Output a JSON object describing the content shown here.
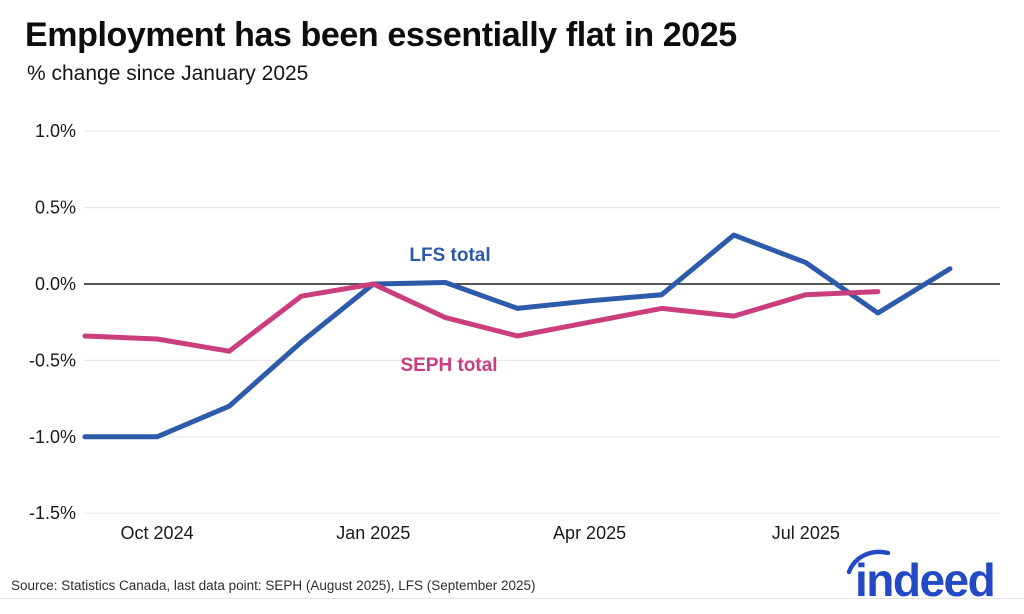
{
  "header": {
    "title": "Employment has been essentially flat in 2025",
    "subtitle": "% change since January 2025"
  },
  "chart_data": {
    "type": "line",
    "title": "Employment has been essentially flat in 2025",
    "subtitle": "% change since January 2025",
    "xlabel": "",
    "ylabel": "% change since January 2025",
    "x": [
      "Sep 2024",
      "Oct 2024",
      "Nov 2024",
      "Dec 2024",
      "Jan 2025",
      "Feb 2025",
      "Mar 2025",
      "Apr 2025",
      "May 2025",
      "Jun 2025",
      "Jul 2025",
      "Aug 2025",
      "Sep 2025"
    ],
    "x_tick_labels": [
      "Oct 2024",
      "Jan 2025",
      "Apr 2025",
      "Jul 2025"
    ],
    "y_ticks": [
      1.0,
      0.5,
      0.0,
      -0.5,
      -1.0,
      -1.5
    ],
    "y_tick_labels": [
      "1.0%",
      "0.5%",
      "0.0%",
      "-0.5%",
      "-1.0%",
      "-1.5%"
    ],
    "ylim": [
      -1.5,
      1.0
    ],
    "grid": "horizontal-light-plus-dark-zero-line",
    "legend": "inline-series-labels",
    "unit": "percent",
    "series": [
      {
        "name": "LFS total",
        "color": "#2d5aa9",
        "values": [
          -1.0,
          -1.0,
          -0.8,
          -0.38,
          0.0,
          0.01,
          -0.16,
          -0.11,
          -0.07,
          0.32,
          0.14,
          -0.19,
          0.1
        ]
      },
      {
        "name": "SEPH total",
        "color": "#cb3e7e",
        "values": [
          -0.34,
          -0.36,
          -0.44,
          -0.08,
          0.0,
          -0.22,
          -0.34,
          -0.25,
          -0.16,
          -0.21,
          -0.07,
          -0.05
        ]
      }
    ]
  },
  "footer": {
    "source": "Source: Statistics Canada, last data point: SEPH (August 2025), LFS (September 2025)",
    "logo_text": "indeed",
    "logo_color": "#2349c4"
  }
}
